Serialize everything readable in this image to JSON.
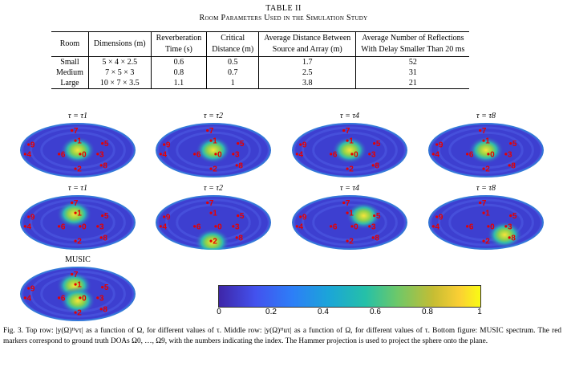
{
  "table": {
    "label": "TABLE II",
    "caption": "Room Parameters Used in the Simulation Study",
    "headers": [
      [
        "Room"
      ],
      [
        "Dimensions (m)"
      ],
      [
        "Reverberation",
        "Time (s)"
      ],
      [
        "Critical",
        "Distance (m)"
      ],
      [
        "Average Distance Between",
        "Source and Array (m)"
      ],
      [
        "Average Number of Reflections",
        "With Delay Smaller Than 20 ms"
      ]
    ],
    "rows": [
      [
        "Small",
        "5 × 4 × 2.5",
        "0.6",
        "0.5",
        "1.7",
        "52"
      ],
      [
        "Medium",
        "7 × 5 × 3",
        "0.8",
        "0.7",
        "2.5",
        "31"
      ],
      [
        "Large",
        "10 × 7 × 3.5",
        "1.1",
        "1",
        "3.8",
        "21"
      ]
    ]
  },
  "plots": [
    {
      "title": "τ = τ1",
      "hot": [
        [
          0.5,
          0.5
        ]
      ]
    },
    {
      "title": "τ = τ2",
      "hot": [
        [
          0.5,
          0.5
        ]
      ]
    },
    {
      "title": "τ = τ4",
      "hot": [
        [
          0.5,
          0.5
        ]
      ]
    },
    {
      "title": "τ = τ8",
      "hot": [
        [
          0.5,
          0.5
        ]
      ]
    },
    {
      "title": "τ = τ1",
      "hot": [
        [
          0.47,
          0.35
        ]
      ]
    },
    {
      "title": "τ = τ2",
      "hot": [
        [
          0.49,
          0.85
        ]
      ]
    },
    {
      "title": "τ = τ4",
      "hot": [
        [
          0.62,
          0.38
        ]
      ]
    },
    {
      "title": "τ = τ8",
      "hot": [
        [
          0.66,
          0.72
        ]
      ]
    },
    {
      "title": "MUSIC",
      "hot": [
        [
          0.47,
          0.35
        ],
        [
          0.5,
          0.62
        ]
      ]
    }
  ],
  "markers": [
    {
      "label": "0",
      "x": 0.52,
      "y": 0.57
    },
    {
      "label": "1",
      "x": 0.48,
      "y": 0.33
    },
    {
      "label": "2",
      "x": 0.48,
      "y": 0.83
    },
    {
      "label": "3",
      "x": 0.67,
      "y": 0.57
    },
    {
      "label": "4",
      "x": 0.05,
      "y": 0.57
    },
    {
      "label": "5",
      "x": 0.71,
      "y": 0.38
    },
    {
      "label": "6",
      "x": 0.34,
      "y": 0.57
    },
    {
      "label": "7",
      "x": 0.45,
      "y": 0.15
    },
    {
      "label": "8",
      "x": 0.7,
      "y": 0.77
    },
    {
      "label": "9",
      "x": 0.08,
      "y": 0.4
    }
  ],
  "colorbar": {
    "ticks": [
      "0",
      "0.2",
      "0.4",
      "0.6",
      "0.8",
      "1"
    ]
  },
  "caption": "Fig. 3.  Top row: |y(Ω)ᴴvτ| as a function of Ω, for different values of τ. Middle row: |y(Ω)ᴴuτ| as a function of Ω, for different values of τ. Bottom figure: MUSIC spectrum. The red markers correspond to ground truth DOAs Ω0, …, Ω9, with the numbers indicating the index. The Hammer projection is used to project the sphere onto the plane.",
  "colors": {
    "marker": "#e60000",
    "map_base": "#3d3fd0",
    "map_mid": "#2fb8b0",
    "map_hot": "#f7e43a"
  }
}
